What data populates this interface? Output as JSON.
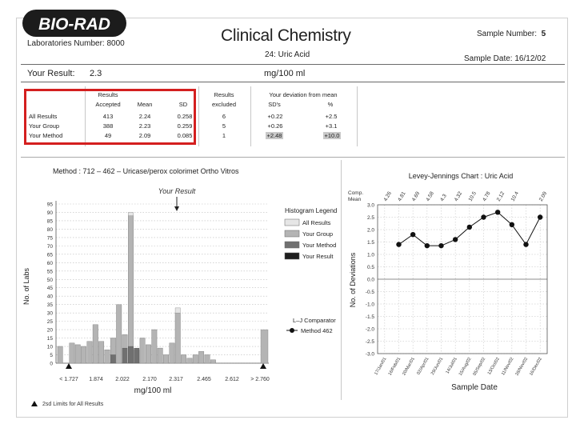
{
  "header": {
    "logo": "BIO-RAD",
    "title": "Clinical Chemistry",
    "laboratory_label": "Laboratories Number:",
    "laboratory_number": "8000",
    "sample_number_label": "Sample Number:",
    "sample_number": "5",
    "analyte": "24: Uric Acid",
    "sample_date_label": "Sample Date:",
    "sample_date": "16/12/02"
  },
  "result": {
    "label": "Your Result:",
    "value": "2.3",
    "unit": "mg/100 ml"
  },
  "stats": {
    "headers": {
      "results_accepted": [
        "Results",
        "Accepted"
      ],
      "mean": "Mean",
      "sd": "SD",
      "results_excluded": [
        "Results",
        "excluded"
      ],
      "deviation_title": "Your deviation from mean",
      "sds": "SD's",
      "pct": "%"
    },
    "rows": [
      {
        "label": "All Results",
        "accepted": "413",
        "mean": "2.24",
        "sd": "0.258",
        "excluded": "6",
        "sds": "+0.22",
        "pct": "+2.5"
      },
      {
        "label": "Your Group",
        "accepted": "388",
        "mean": "2.23",
        "sd": "0.259",
        "excluded": "5",
        "sds": "+0.26",
        "pct": "+3.1"
      },
      {
        "label": "Your Method",
        "accepted": "49",
        "mean": "2.09",
        "sd": "0.085",
        "excluded": "1",
        "sds": "+2.48",
        "pct": "+10.0"
      }
    ]
  },
  "histogram": {
    "title": "Method : 712 – 462 – Uricase/perox colorimet Ortho Vitros",
    "your_result_label": "Your Result",
    "legend_title": "Histogram Legend",
    "legend": [
      {
        "name": "All Results",
        "color": "#e6e6e6"
      },
      {
        "name": "Your Group",
        "color": "#b4b4b4"
      },
      {
        "name": "Your Method",
        "color": "#707070"
      },
      {
        "name": "Your Result",
        "color": "#1e1e1e"
      }
    ],
    "lj_comparator_title": "L–J Comparator",
    "lj_comparator_item": "Method 462",
    "xlabel": "mg/100 ml",
    "ylabel": "No. of Labs",
    "footnote": "2sd Limits for All Results",
    "x_ticks": [
      "< 1.727",
      "1.874",
      "2.022",
      "2.170",
      "2.317",
      "2.465",
      "2.612",
      "> 2.760"
    ],
    "y_ticks": [
      "0",
      "5",
      "10",
      "15",
      "20",
      "25",
      "30",
      "35",
      "40",
      "45",
      "50",
      "55",
      "60",
      "65",
      "70",
      "75",
      "80",
      "85",
      "90",
      "95"
    ]
  },
  "lj_chart": {
    "title": "Levey-Jennings Chart : Uric Acid",
    "comp_label": "Comp.",
    "mean_label": "Mean",
    "ylabel": "No. of Deviations",
    "xlabel": "Sample Date",
    "y_ticks": [
      "3.0",
      "2.5",
      "2.0",
      "1.5",
      "1.0",
      "0.5",
      "0.0",
      "-0.5",
      "-1.0",
      "-1.5",
      "-2.0",
      "-2.5",
      "-3.0"
    ]
  },
  "chart_data": [
    {
      "type": "bar",
      "title": "Method : 712 – 462 – Uricase/perox colorimet Ortho Vitros",
      "xlabel": "mg/100 ml",
      "ylabel": "No. of Labs",
      "ylim": [
        0,
        95
      ],
      "legend_placement": "right",
      "series": [
        {
          "name": "All Results",
          "values": [
            10,
            0,
            12,
            11,
            10,
            13,
            23,
            13,
            8,
            15,
            35,
            17,
            90,
            8,
            15,
            11,
            20,
            9,
            5,
            12,
            33,
            5,
            3,
            5,
            7,
            5,
            2,
            0,
            0,
            0,
            0,
            0,
            0,
            0
          ]
        },
        {
          "name": "Your Group",
          "values": [
            10,
            0,
            12,
            11,
            10,
            13,
            23,
            13,
            8,
            15,
            35,
            17,
            88,
            8,
            15,
            11,
            20,
            9,
            5,
            12,
            30,
            5,
            3,
            5,
            7,
            5,
            2,
            0,
            0,
            0,
            0,
            0,
            0,
            0
          ]
        },
        {
          "name": "Your Method",
          "values": [
            0,
            0,
            0,
            0,
            0,
            0,
            0,
            0,
            0,
            5,
            0,
            9,
            10,
            9,
            0,
            0,
            0,
            0,
            0,
            0,
            0,
            0,
            0,
            0,
            0,
            0,
            0,
            0,
            0,
            0,
            0,
            0,
            0,
            0
          ]
        },
        {
          "name": "Your Result",
          "values": [
            0,
            0,
            0,
            0,
            0,
            0,
            0,
            0,
            0,
            0,
            0,
            0,
            0,
            0,
            0,
            0,
            0,
            0,
            0,
            0,
            0,
            0,
            0,
            0,
            0,
            0,
            0,
            0,
            0,
            0,
            0,
            0,
            0,
            0
          ]
        }
      ],
      "bin_values": [
        10,
        0,
        12,
        11,
        10,
        13,
        23,
        13,
        8,
        15,
        35,
        17,
        90,
        8,
        15,
        11,
        20,
        9,
        5,
        12,
        33,
        5,
        3,
        5,
        7,
        5,
        2,
        0,
        0,
        0,
        0,
        0,
        0,
        0
      ],
      "right_bin_value": 20
    },
    {
      "type": "line",
      "title": "Levey-Jennings Chart : Uric Acid",
      "xlabel": "Sample Date",
      "ylabel": "No. of Deviations",
      "ylim": [
        -3.0,
        3.0
      ],
      "x": [
        "17/Jan/01",
        "16/Feb/01",
        "20/Mar/01",
        "02/Apr/01",
        "29/Jun/01",
        "14/Jul/01",
        "15/Aug/02",
        "05/Sep/02",
        "13/Oct/02",
        "11/Nov/02",
        "28/Nov/02",
        "16/Dec/02"
      ],
      "comp_means": [
        "4.26",
        "4.81",
        "4.69",
        "4.58",
        "4.3",
        "4.32",
        "10.5",
        "4.78",
        "2.12",
        "10.4",
        "",
        "2.09"
      ],
      "series": [
        {
          "name": "Method 462",
          "values": [
            null,
            1.4,
            1.8,
            1.35,
            1.35,
            1.6,
            2.1,
            2.5,
            2.7,
            2.2,
            1.4,
            2.5
          ]
        }
      ]
    }
  ]
}
